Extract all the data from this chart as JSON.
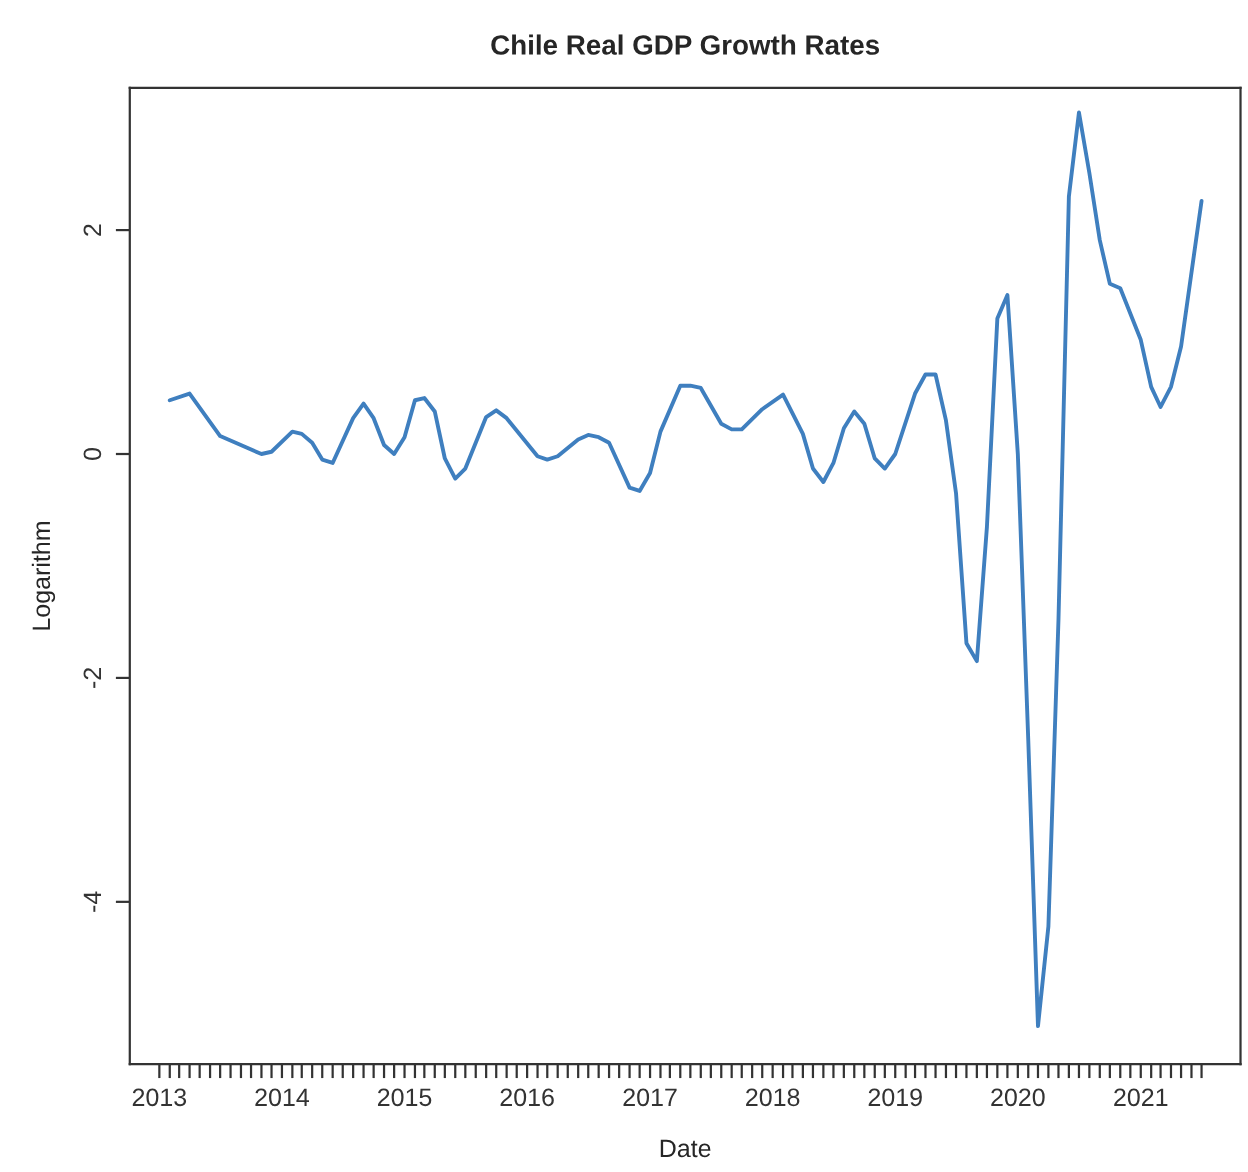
{
  "chart_data": {
    "type": "line",
    "title": "Chile Real GDP Growth Rates",
    "xlabel": "Date",
    "ylabel": "Logarithm",
    "x": [
      "2013-02",
      "2013-04",
      "2013-07",
      "2013-11",
      "2013-12",
      "2014-02",
      "2014-03",
      "2014-04",
      "2014-05",
      "2014-06",
      "2014-08",
      "2014-09",
      "2014-10",
      "2014-11",
      "2014-12",
      "2015-01",
      "2015-02",
      "2015-03",
      "2015-04",
      "2015-05",
      "2015-06",
      "2015-07",
      "2015-09",
      "2015-10",
      "2015-11",
      "2016-02",
      "2016-03",
      "2016-04",
      "2016-06",
      "2016-07",
      "2016-08",
      "2016-09",
      "2016-11",
      "2016-12",
      "2017-01",
      "2017-02",
      "2017-04",
      "2017-05",
      "2017-06",
      "2017-08",
      "2017-09",
      "2017-10",
      "2017-12",
      "2018-02",
      "2018-04",
      "2018-05",
      "2018-06",
      "2018-07",
      "2018-08",
      "2018-09",
      "2018-10",
      "2018-11",
      "2018-12",
      "2019-01",
      "2019-03",
      "2019-04",
      "2019-05",
      "2019-06",
      "2019-07",
      "2019-08",
      "2019-09",
      "2019-10",
      "2019-11",
      "2019-12",
      "2020-01",
      "2020-02",
      "2020-03",
      "2020-04",
      "2020-05",
      "2020-06",
      "2020-07",
      "2020-08",
      "2020-09",
      "2020-10",
      "2020-11",
      "2021-01",
      "2021-02",
      "2021-03",
      "2021-04",
      "2021-05",
      "2021-07"
    ],
    "series": [
      {
        "color": "#3f7fbf",
        "values": [
          0.48,
          0.54,
          0.16,
          0.0,
          0.02,
          0.2,
          0.18,
          0.1,
          -0.05,
          -0.08,
          0.32,
          0.45,
          0.32,
          0.08,
          0.0,
          0.15,
          0.48,
          0.5,
          0.38,
          -0.04,
          -0.22,
          -0.13,
          0.33,
          0.39,
          0.32,
          -0.02,
          -0.05,
          -0.02,
          0.13,
          0.17,
          0.15,
          0.1,
          -0.3,
          -0.33,
          -0.17,
          0.2,
          0.61,
          0.61,
          0.59,
          0.27,
          0.22,
          0.22,
          0.4,
          0.53,
          0.18,
          -0.13,
          -0.25,
          -0.08,
          0.23,
          0.38,
          0.27,
          -0.04,
          -0.13,
          0.0,
          0.54,
          0.71,
          0.71,
          0.3,
          -0.35,
          -1.69,
          -1.85,
          -0.65,
          1.21,
          1.42,
          0.0,
          -2.55,
          -5.11,
          -4.22,
          -1.48,
          2.3,
          3.05,
          2.51,
          1.91,
          1.52,
          1.48,
          1.02,
          0.6,
          0.42,
          0.6,
          0.96,
          2.26
        ]
      }
    ],
    "xlim": [
      "2012-10-05",
      "2021-10-25"
    ],
    "xticks": [
      {
        "value": "2013-01",
        "label": "2013"
      },
      {
        "value": "2013-02",
        "label": null
      },
      {
        "value": "2013-03",
        "label": null
      },
      {
        "value": "2013-04",
        "label": null
      },
      {
        "value": "2013-05",
        "label": null
      },
      {
        "value": "2013-06",
        "label": null
      },
      {
        "value": "2013-07",
        "label": null
      },
      {
        "value": "2013-08",
        "label": null
      },
      {
        "value": "2013-09",
        "label": null
      },
      {
        "value": "2013-10",
        "label": null
      },
      {
        "value": "2013-11",
        "label": null
      },
      {
        "value": "2013-12",
        "label": null
      },
      {
        "value": "2014-01",
        "label": "2014"
      },
      {
        "value": "2014-02",
        "label": null
      },
      {
        "value": "2014-03",
        "label": null
      },
      {
        "value": "2014-04",
        "label": null
      },
      {
        "value": "2014-05",
        "label": null
      },
      {
        "value": "2014-06",
        "label": null
      },
      {
        "value": "2014-07",
        "label": null
      },
      {
        "value": "2014-08",
        "label": null
      },
      {
        "value": "2014-09",
        "label": null
      },
      {
        "value": "2014-10",
        "label": null
      },
      {
        "value": "2014-11",
        "label": null
      },
      {
        "value": "2014-12",
        "label": null
      },
      {
        "value": "2015-01",
        "label": "2015"
      },
      {
        "value": "2015-02",
        "label": null
      },
      {
        "value": "2015-03",
        "label": null
      },
      {
        "value": "2015-04",
        "label": null
      },
      {
        "value": "2015-05",
        "label": null
      },
      {
        "value": "2015-06",
        "label": null
      },
      {
        "value": "2015-07",
        "label": null
      },
      {
        "value": "2015-08",
        "label": null
      },
      {
        "value": "2015-09",
        "label": null
      },
      {
        "value": "2015-10",
        "label": null
      },
      {
        "value": "2015-11",
        "label": null
      },
      {
        "value": "2015-12",
        "label": null
      },
      {
        "value": "2016-01",
        "label": "2016"
      },
      {
        "value": "2016-02",
        "label": null
      },
      {
        "value": "2016-03",
        "label": null
      },
      {
        "value": "2016-04",
        "label": null
      },
      {
        "value": "2016-05",
        "label": null
      },
      {
        "value": "2016-06",
        "label": null
      },
      {
        "value": "2016-07",
        "label": null
      },
      {
        "value": "2016-08",
        "label": null
      },
      {
        "value": "2016-09",
        "label": null
      },
      {
        "value": "2016-10",
        "label": null
      },
      {
        "value": "2016-11",
        "label": null
      },
      {
        "value": "2016-12",
        "label": null
      },
      {
        "value": "2017-01",
        "label": "2017"
      },
      {
        "value": "2017-02",
        "label": null
      },
      {
        "value": "2017-03",
        "label": null
      },
      {
        "value": "2017-04",
        "label": null
      },
      {
        "value": "2017-05",
        "label": null
      },
      {
        "value": "2017-06",
        "label": null
      },
      {
        "value": "2017-07",
        "label": null
      },
      {
        "value": "2017-08",
        "label": null
      },
      {
        "value": "2017-09",
        "label": null
      },
      {
        "value": "2017-10",
        "label": null
      },
      {
        "value": "2017-11",
        "label": null
      },
      {
        "value": "2017-12",
        "label": null
      },
      {
        "value": "2018-01",
        "label": "2018"
      },
      {
        "value": "2018-02",
        "label": null
      },
      {
        "value": "2018-03",
        "label": null
      },
      {
        "value": "2018-04",
        "label": null
      },
      {
        "value": "2018-05",
        "label": null
      },
      {
        "value": "2018-06",
        "label": null
      },
      {
        "value": "2018-07",
        "label": null
      },
      {
        "value": "2018-08",
        "label": null
      },
      {
        "value": "2018-09",
        "label": null
      },
      {
        "value": "2018-10",
        "label": null
      },
      {
        "value": "2018-11",
        "label": null
      },
      {
        "value": "2018-12",
        "label": null
      },
      {
        "value": "2019-01",
        "label": "2019"
      },
      {
        "value": "2019-02",
        "label": null
      },
      {
        "value": "2019-03",
        "label": null
      },
      {
        "value": "2019-04",
        "label": null
      },
      {
        "value": "2019-05",
        "label": null
      },
      {
        "value": "2019-06",
        "label": null
      },
      {
        "value": "2019-07",
        "label": null
      },
      {
        "value": "2019-08",
        "label": null
      },
      {
        "value": "2019-09",
        "label": null
      },
      {
        "value": "2019-10",
        "label": null
      },
      {
        "value": "2019-11",
        "label": null
      },
      {
        "value": "2019-12",
        "label": null
      },
      {
        "value": "2020-01",
        "label": "2020"
      },
      {
        "value": "2020-02",
        "label": null
      },
      {
        "value": "2020-03",
        "label": null
      },
      {
        "value": "2020-04",
        "label": null
      },
      {
        "value": "2020-05",
        "label": null
      },
      {
        "value": "2020-06",
        "label": null
      },
      {
        "value": "2020-07",
        "label": null
      },
      {
        "value": "2020-08",
        "label": null
      },
      {
        "value": "2020-09",
        "label": null
      },
      {
        "value": "2020-10",
        "label": null
      },
      {
        "value": "2020-11",
        "label": null
      },
      {
        "value": "2020-12",
        "label": null
      },
      {
        "value": "2021-01",
        "label": "2021"
      },
      {
        "value": "2021-02",
        "label": null
      },
      {
        "value": "2021-03",
        "label": null
      },
      {
        "value": "2021-04",
        "label": null
      },
      {
        "value": "2021-05",
        "label": null
      },
      {
        "value": "2021-06",
        "label": null
      },
      {
        "value": "2021-07",
        "label": null
      }
    ],
    "ylim": [
      -5.45,
      3.27
    ],
    "yticks": [
      -4,
      -2,
      0,
      2
    ],
    "grid": false,
    "legend": false
  }
}
